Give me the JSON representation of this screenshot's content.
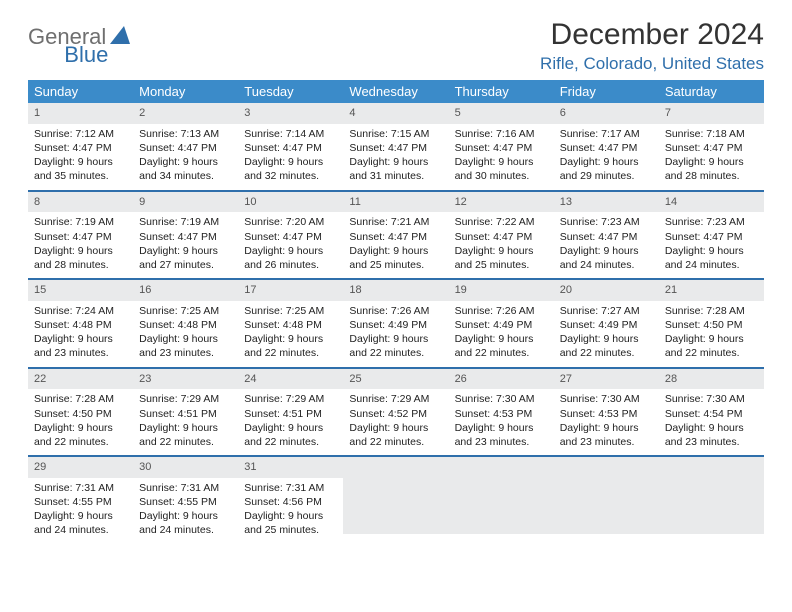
{
  "logo": {
    "part1": "General",
    "part2": "Blue"
  },
  "title": "December 2024",
  "location": "Rifle, Colorado, United States",
  "colors": {
    "header_bg": "#3b8bc9",
    "accent": "#2f6fab",
    "daynum_bg": "#e9eaeb",
    "text": "#222222"
  },
  "weekdays": [
    "Sunday",
    "Monday",
    "Tuesday",
    "Wednesday",
    "Thursday",
    "Friday",
    "Saturday"
  ],
  "weeks": [
    [
      {
        "n": "1",
        "sr": "Sunrise: 7:12 AM",
        "ss": "Sunset: 4:47 PM",
        "d1": "Daylight: 9 hours",
        "d2": "and 35 minutes."
      },
      {
        "n": "2",
        "sr": "Sunrise: 7:13 AM",
        "ss": "Sunset: 4:47 PM",
        "d1": "Daylight: 9 hours",
        "d2": "and 34 minutes."
      },
      {
        "n": "3",
        "sr": "Sunrise: 7:14 AM",
        "ss": "Sunset: 4:47 PM",
        "d1": "Daylight: 9 hours",
        "d2": "and 32 minutes."
      },
      {
        "n": "4",
        "sr": "Sunrise: 7:15 AM",
        "ss": "Sunset: 4:47 PM",
        "d1": "Daylight: 9 hours",
        "d2": "and 31 minutes."
      },
      {
        "n": "5",
        "sr": "Sunrise: 7:16 AM",
        "ss": "Sunset: 4:47 PM",
        "d1": "Daylight: 9 hours",
        "d2": "and 30 minutes."
      },
      {
        "n": "6",
        "sr": "Sunrise: 7:17 AM",
        "ss": "Sunset: 4:47 PM",
        "d1": "Daylight: 9 hours",
        "d2": "and 29 minutes."
      },
      {
        "n": "7",
        "sr": "Sunrise: 7:18 AM",
        "ss": "Sunset: 4:47 PM",
        "d1": "Daylight: 9 hours",
        "d2": "and 28 minutes."
      }
    ],
    [
      {
        "n": "8",
        "sr": "Sunrise: 7:19 AM",
        "ss": "Sunset: 4:47 PM",
        "d1": "Daylight: 9 hours",
        "d2": "and 28 minutes."
      },
      {
        "n": "9",
        "sr": "Sunrise: 7:19 AM",
        "ss": "Sunset: 4:47 PM",
        "d1": "Daylight: 9 hours",
        "d2": "and 27 minutes."
      },
      {
        "n": "10",
        "sr": "Sunrise: 7:20 AM",
        "ss": "Sunset: 4:47 PM",
        "d1": "Daylight: 9 hours",
        "d2": "and 26 minutes."
      },
      {
        "n": "11",
        "sr": "Sunrise: 7:21 AM",
        "ss": "Sunset: 4:47 PM",
        "d1": "Daylight: 9 hours",
        "d2": "and 25 minutes."
      },
      {
        "n": "12",
        "sr": "Sunrise: 7:22 AM",
        "ss": "Sunset: 4:47 PM",
        "d1": "Daylight: 9 hours",
        "d2": "and 25 minutes."
      },
      {
        "n": "13",
        "sr": "Sunrise: 7:23 AM",
        "ss": "Sunset: 4:47 PM",
        "d1": "Daylight: 9 hours",
        "d2": "and 24 minutes."
      },
      {
        "n": "14",
        "sr": "Sunrise: 7:23 AM",
        "ss": "Sunset: 4:47 PM",
        "d1": "Daylight: 9 hours",
        "d2": "and 24 minutes."
      }
    ],
    [
      {
        "n": "15",
        "sr": "Sunrise: 7:24 AM",
        "ss": "Sunset: 4:48 PM",
        "d1": "Daylight: 9 hours",
        "d2": "and 23 minutes."
      },
      {
        "n": "16",
        "sr": "Sunrise: 7:25 AM",
        "ss": "Sunset: 4:48 PM",
        "d1": "Daylight: 9 hours",
        "d2": "and 23 minutes."
      },
      {
        "n": "17",
        "sr": "Sunrise: 7:25 AM",
        "ss": "Sunset: 4:48 PM",
        "d1": "Daylight: 9 hours",
        "d2": "and 22 minutes."
      },
      {
        "n": "18",
        "sr": "Sunrise: 7:26 AM",
        "ss": "Sunset: 4:49 PM",
        "d1": "Daylight: 9 hours",
        "d2": "and 22 minutes."
      },
      {
        "n": "19",
        "sr": "Sunrise: 7:26 AM",
        "ss": "Sunset: 4:49 PM",
        "d1": "Daylight: 9 hours",
        "d2": "and 22 minutes."
      },
      {
        "n": "20",
        "sr": "Sunrise: 7:27 AM",
        "ss": "Sunset: 4:49 PM",
        "d1": "Daylight: 9 hours",
        "d2": "and 22 minutes."
      },
      {
        "n": "21",
        "sr": "Sunrise: 7:28 AM",
        "ss": "Sunset: 4:50 PM",
        "d1": "Daylight: 9 hours",
        "d2": "and 22 minutes."
      }
    ],
    [
      {
        "n": "22",
        "sr": "Sunrise: 7:28 AM",
        "ss": "Sunset: 4:50 PM",
        "d1": "Daylight: 9 hours",
        "d2": "and 22 minutes."
      },
      {
        "n": "23",
        "sr": "Sunrise: 7:29 AM",
        "ss": "Sunset: 4:51 PM",
        "d1": "Daylight: 9 hours",
        "d2": "and 22 minutes."
      },
      {
        "n": "24",
        "sr": "Sunrise: 7:29 AM",
        "ss": "Sunset: 4:51 PM",
        "d1": "Daylight: 9 hours",
        "d2": "and 22 minutes."
      },
      {
        "n": "25",
        "sr": "Sunrise: 7:29 AM",
        "ss": "Sunset: 4:52 PM",
        "d1": "Daylight: 9 hours",
        "d2": "and 22 minutes."
      },
      {
        "n": "26",
        "sr": "Sunrise: 7:30 AM",
        "ss": "Sunset: 4:53 PM",
        "d1": "Daylight: 9 hours",
        "d2": "and 23 minutes."
      },
      {
        "n": "27",
        "sr": "Sunrise: 7:30 AM",
        "ss": "Sunset: 4:53 PM",
        "d1": "Daylight: 9 hours",
        "d2": "and 23 minutes."
      },
      {
        "n": "28",
        "sr": "Sunrise: 7:30 AM",
        "ss": "Sunset: 4:54 PM",
        "d1": "Daylight: 9 hours",
        "d2": "and 23 minutes."
      }
    ],
    [
      {
        "n": "29",
        "sr": "Sunrise: 7:31 AM",
        "ss": "Sunset: 4:55 PM",
        "d1": "Daylight: 9 hours",
        "d2": "and 24 minutes."
      },
      {
        "n": "30",
        "sr": "Sunrise: 7:31 AM",
        "ss": "Sunset: 4:55 PM",
        "d1": "Daylight: 9 hours",
        "d2": "and 24 minutes."
      },
      {
        "n": "31",
        "sr": "Sunrise: 7:31 AM",
        "ss": "Sunset: 4:56 PM",
        "d1": "Daylight: 9 hours",
        "d2": "and 25 minutes."
      },
      {
        "blank": true
      },
      {
        "blank": true
      },
      {
        "blank": true
      },
      {
        "blank": true
      }
    ]
  ]
}
